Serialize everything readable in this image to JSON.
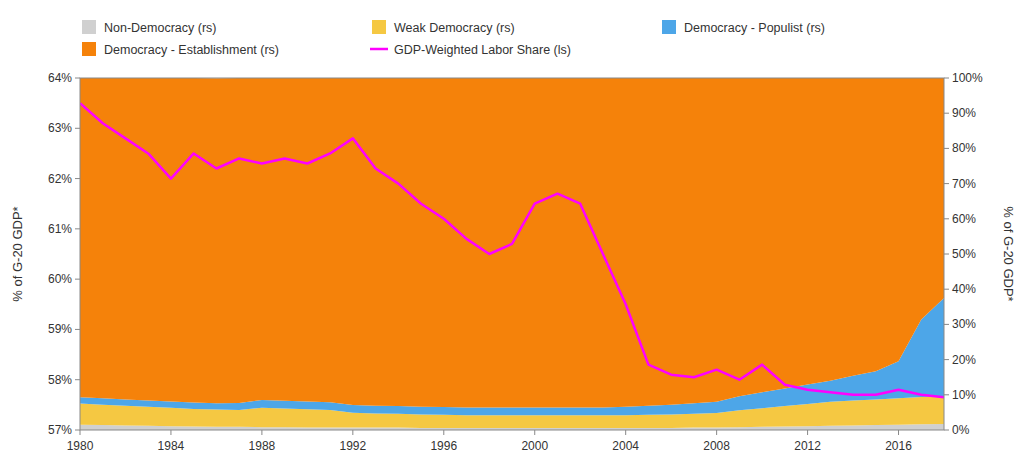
{
  "chart_data": {
    "type": "area",
    "stacked": true,
    "grid": false,
    "legend": "top",
    "x": [
      1980,
      1981,
      1982,
      1983,
      1984,
      1985,
      1986,
      1987,
      1988,
      1989,
      1990,
      1991,
      1992,
      1993,
      1994,
      1995,
      1996,
      1997,
      1998,
      1999,
      2000,
      2001,
      2002,
      2003,
      2004,
      2005,
      2006,
      2007,
      2008,
      2009,
      2010,
      2011,
      2012,
      2013,
      2014,
      2015,
      2016,
      2017,
      2018
    ],
    "xlim": [
      1980,
      2018
    ],
    "xticks": [
      1980,
      1984,
      1988,
      1992,
      1996,
      2000,
      2004,
      2008,
      2012,
      2016
    ],
    "y_label": "% of G-20 GDP*",
    "ylim": [
      57,
      64
    ],
    "yticks": [
      {
        "value": 57,
        "label": "57%"
      },
      {
        "value": 58,
        "label": "58%"
      },
      {
        "value": 59,
        "label": "59%"
      },
      {
        "value": 60,
        "label": "60%"
      },
      {
        "value": 61,
        "label": "61%"
      },
      {
        "value": 62,
        "label": "62%"
      },
      {
        "value": 63,
        "label": "63%"
      },
      {
        "value": 64,
        "label": "64%"
      }
    ],
    "y2_label": "% of G-20 GDP*",
    "y2lim": [
      0,
      100
    ],
    "y2ticks": [
      {
        "value": 0,
        "label": "0%"
      },
      {
        "value": 10,
        "label": "10%"
      },
      {
        "value": 20,
        "label": "20%"
      },
      {
        "value": 30,
        "label": "30%"
      },
      {
        "value": 40,
        "label": "40%"
      },
      {
        "value": 50,
        "label": "50%"
      },
      {
        "value": 60,
        "label": "60%"
      },
      {
        "value": 70,
        "label": "70%"
      },
      {
        "value": 80,
        "label": "80%"
      },
      {
        "value": 90,
        "label": "90%"
      },
      {
        "value": 100,
        "label": "100%"
      }
    ],
    "series": [
      {
        "name": "Non-Democracy (rs)",
        "type": "area",
        "axis": "y2",
        "color": "#d0d0d0",
        "values": [
          1.5,
          1.4,
          1.3,
          1.2,
          1.1,
          1.0,
          0.9,
          0.9,
          0.8,
          0.8,
          0.7,
          0.7,
          0.7,
          0.7,
          0.7,
          0.6,
          0.6,
          0.6,
          0.6,
          0.6,
          0.6,
          0.6,
          0.6,
          0.6,
          0.6,
          0.6,
          0.6,
          0.7,
          0.7,
          0.8,
          0.9,
          1.0,
          1.1,
          1.2,
          1.3,
          1.4,
          1.5,
          1.6,
          1.7
        ]
      },
      {
        "name": "Weak Democracy (rs)",
        "type": "area",
        "axis": "y2",
        "color": "#f5c842",
        "values": [
          6.0,
          5.8,
          5.6,
          5.4,
          5.2,
          5.0,
          4.9,
          4.8,
          5.5,
          5.3,
          5.2,
          5.0,
          4.2,
          4.0,
          3.9,
          3.8,
          3.7,
          3.6,
          3.6,
          3.6,
          3.6,
          3.6,
          3.6,
          3.6,
          3.6,
          3.7,
          3.8,
          3.9,
          4.1,
          4.8,
          5.3,
          5.8,
          6.3,
          6.8,
          7.1,
          7.3,
          7.5,
          7.8,
          7.8
        ]
      },
      {
        "name": "Democracy - Populist (rs)",
        "type": "area",
        "axis": "y2",
        "color": "#4da6e8",
        "values": [
          1.8,
          1.8,
          1.8,
          1.8,
          1.8,
          1.8,
          1.8,
          2.0,
          2.2,
          2.2,
          2.2,
          2.2,
          2.2,
          2.2,
          2.2,
          2.2,
          2.2,
          2.2,
          2.2,
          2.2,
          2.2,
          2.2,
          2.2,
          2.2,
          2.4,
          2.6,
          2.8,
          3.0,
          3.2,
          4.0,
          4.5,
          5.0,
          5.5,
          6.0,
          7.0,
          8.0,
          10.5,
          22.0,
          28.0
        ]
      },
      {
        "name": "Democracy - Establishment (rs)",
        "type": "area",
        "axis": "y2",
        "color": "#f5820a",
        "values": [
          90.7,
          91.0,
          91.3,
          91.6,
          91.9,
          92.2,
          92.3,
          92.3,
          91.5,
          91.7,
          91.9,
          92.1,
          92.9,
          93.1,
          93.2,
          93.4,
          93.5,
          93.6,
          93.6,
          93.6,
          93.6,
          93.6,
          93.6,
          93.6,
          93.4,
          93.1,
          92.8,
          92.4,
          92.0,
          90.4,
          89.3,
          88.2,
          87.1,
          86.0,
          84.6,
          83.3,
          80.5,
          68.6,
          62.5
        ]
      },
      {
        "name": "GDP-Weighted Labor Share (ls)",
        "type": "line",
        "color": "#ff00ff",
        "values": [
          63.5,
          63.1,
          62.8,
          62.5,
          62.0,
          62.5,
          62.2,
          62.4,
          62.3,
          62.4,
          62.3,
          62.5,
          62.8,
          62.2,
          61.9,
          61.5,
          61.2,
          60.8,
          60.5,
          60.7,
          61.5,
          61.7,
          61.5,
          60.5,
          59.5,
          58.3,
          58.1,
          58.05,
          58.2,
          58.0,
          58.3,
          57.9,
          57.8,
          57.75,
          57.7,
          57.7,
          57.8,
          57.7,
          57.65
        ]
      }
    ]
  }
}
